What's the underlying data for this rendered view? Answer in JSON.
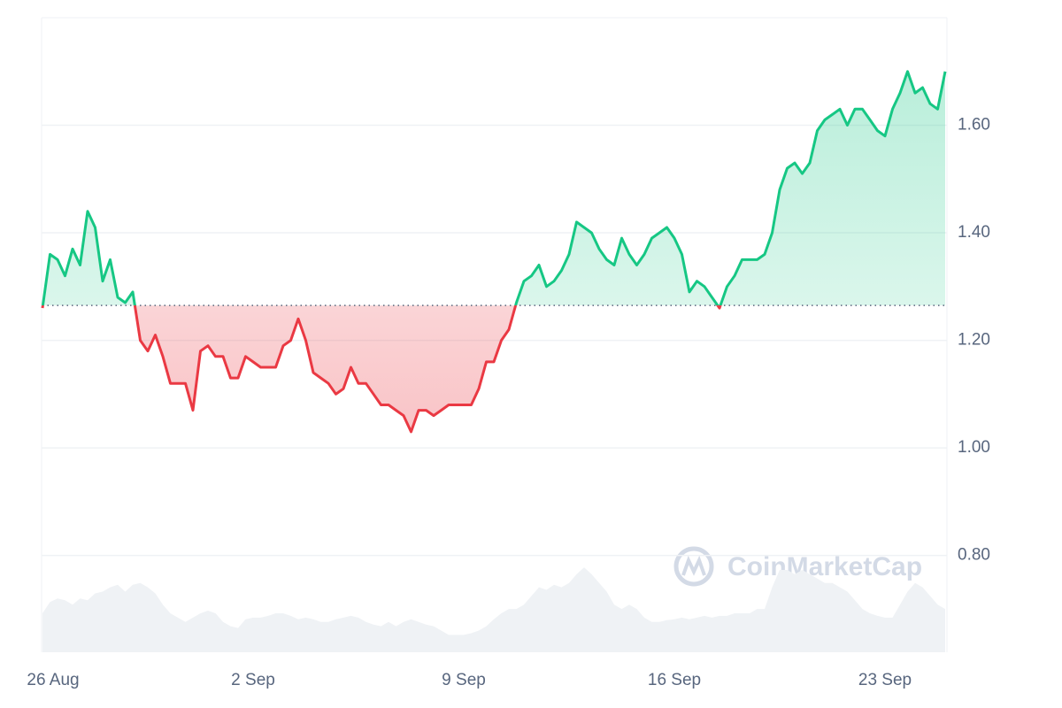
{
  "chart_data": {
    "type": "line",
    "watermark": "CoinMarketCap",
    "categories": [
      "26 Aug",
      null,
      null,
      null,
      null,
      null,
      null,
      null,
      null,
      null,
      null,
      null,
      null,
      null,
      null,
      null,
      null,
      null,
      null,
      null,
      null,
      null,
      null,
      null,
      null,
      null,
      null,
      null,
      "2 Sep",
      null,
      null,
      null,
      null,
      null,
      null,
      null,
      null,
      null,
      null,
      null,
      null,
      null,
      null,
      null,
      null,
      null,
      null,
      null,
      null,
      null,
      null,
      null,
      null,
      null,
      null,
      null,
      "9 Sep",
      null,
      null,
      null,
      null,
      null,
      null,
      null,
      null,
      null,
      null,
      null,
      null,
      null,
      null,
      null,
      null,
      null,
      null,
      null,
      null,
      null,
      null,
      null,
      null,
      null,
      null,
      null,
      "16 Sep",
      null,
      null,
      null,
      null,
      null,
      null,
      null,
      null,
      null,
      null,
      null,
      null,
      null,
      null,
      null,
      null,
      null,
      null,
      null,
      null,
      null,
      null,
      null,
      null,
      null,
      null,
      null,
      "23 Sep",
      null,
      null,
      null,
      null,
      null,
      null,
      null,
      null
    ],
    "series": [
      {
        "name": "Price",
        "color": "#16c784",
        "below_color": "#ea3943",
        "values": [
          1.26,
          1.36,
          1.35,
          1.32,
          1.37,
          1.34,
          1.44,
          1.41,
          1.31,
          1.35,
          1.28,
          1.27,
          1.29,
          1.2,
          1.18,
          1.21,
          1.17,
          1.12,
          1.12,
          1.12,
          1.07,
          1.18,
          1.19,
          1.17,
          1.17,
          1.13,
          1.13,
          1.17,
          1.16,
          1.15,
          1.15,
          1.15,
          1.19,
          1.2,
          1.24,
          1.2,
          1.14,
          1.13,
          1.12,
          1.1,
          1.11,
          1.15,
          1.12,
          1.12,
          1.1,
          1.08,
          1.08,
          1.07,
          1.06,
          1.03,
          1.07,
          1.07,
          1.06,
          1.07,
          1.08,
          1.08,
          1.08,
          1.08,
          1.11,
          1.16,
          1.16,
          1.2,
          1.22,
          1.27,
          1.31,
          1.32,
          1.34,
          1.3,
          1.31,
          1.33,
          1.36,
          1.42,
          1.41,
          1.4,
          1.37,
          1.35,
          1.34,
          1.39,
          1.36,
          1.34,
          1.36,
          1.39,
          1.4,
          1.41,
          1.39,
          1.36,
          1.29,
          1.31,
          1.3,
          1.28,
          1.26,
          1.3,
          1.32,
          1.35,
          1.35,
          1.35,
          1.36,
          1.4,
          1.48,
          1.52,
          1.53,
          1.51,
          1.53,
          1.59,
          1.61,
          1.62,
          1.63,
          1.6,
          1.63,
          1.63,
          1.61,
          1.59,
          1.58,
          1.63,
          1.66,
          1.7,
          1.66,
          1.67,
          1.64,
          1.63,
          1.7
        ]
      },
      {
        "name": "Volume",
        "color": "#eff2f5",
        "axis": "y2",
        "values": [
          45,
          58,
          62,
          60,
          55,
          62,
          60,
          68,
          70,
          75,
          78,
          70,
          78,
          80,
          75,
          68,
          55,
          45,
          40,
          35,
          40,
          45,
          48,
          45,
          35,
          30,
          28,
          38,
          40,
          40,
          42,
          45,
          45,
          42,
          38,
          40,
          38,
          35,
          35,
          38,
          40,
          42,
          40,
          35,
          32,
          30,
          35,
          30,
          35,
          38,
          35,
          32,
          30,
          25,
          20,
          20,
          20,
          22,
          25,
          30,
          38,
          45,
          50,
          50,
          55,
          65,
          75,
          72,
          78,
          75,
          80,
          90,
          98,
          90,
          80,
          70,
          55,
          50,
          55,
          50,
          40,
          35,
          35,
          37,
          38,
          40,
          38,
          40,
          42,
          40,
          42,
          42,
          45,
          45,
          45,
          50,
          50,
          75,
          95,
          95,
          90,
          95,
          90,
          85,
          80,
          80,
          75,
          70,
          60,
          50,
          45,
          42,
          40,
          40,
          55,
          70,
          80,
          75,
          65,
          55,
          50
        ]
      }
    ],
    "baseline": 1.265,
    "ylim": [
      0.62,
      1.8
    ],
    "yticks": [
      {
        "value": 0.8,
        "label": "0.80"
      },
      {
        "value": 1.0,
        "label": "1.00"
      },
      {
        "value": 1.2,
        "label": "1.20"
      },
      {
        "value": 1.4,
        "label": "1.40"
      },
      {
        "value": 1.6,
        "label": "1.60"
      }
    ],
    "y2lim": [
      0,
      140
    ],
    "grid": true
  }
}
